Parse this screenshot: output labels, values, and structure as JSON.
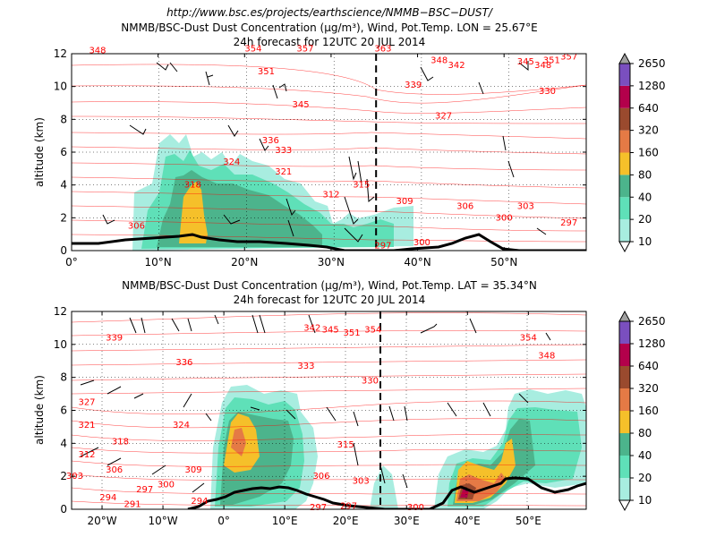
{
  "header": {
    "url": "http://www.bsc.es/projects/earthscience/NMMB−BSC−DUST/"
  },
  "colorbar": {
    "ticks": [
      "10",
      "20",
      "40",
      "80",
      "160",
      "320",
      "640",
      "1280",
      "2650"
    ],
    "colors": [
      "#a8ede0",
      "#5fe0b8",
      "#4cb48c",
      "#f5c02a",
      "#e57a45",
      "#9a4a2e",
      "#b3004b",
      "#7a4fbf"
    ]
  },
  "chart_data": [
    {
      "type": "contour",
      "title": "NMMB/BSC-Dust Dust Concentration (µg/m³), Wind, Pot.Temp. LON = 25.67°E",
      "subtitle": "24h forecast for 12UTC 20 JUL 2014",
      "xlabel": "",
      "ylabel": "altitude (km)",
      "xlim": [
        0,
        59.5
      ],
      "ylim": [
        0,
        12
      ],
      "x_ticks": [
        0,
        10,
        20,
        30,
        40,
        50
      ],
      "x_tick_labels": [
        "0°",
        "10°N",
        "20°N",
        "30°N",
        "40°N",
        "50°N"
      ],
      "y_ticks": [
        0,
        2,
        4,
        6,
        8,
        10,
        12
      ],
      "y_tick_labels": [
        "0",
        "2",
        "4",
        "6",
        "8",
        "10",
        "12"
      ],
      "grid": true,
      "cross_section_marker_x": 35.3,
      "theta_labels": [
        {
          "x": 21,
          "y": 12.3,
          "text": "354"
        },
        {
          "x": 27,
          "y": 12.3,
          "text": "357"
        },
        {
          "x": 36,
          "y": 12.3,
          "text": "363"
        },
        {
          "x": 3,
          "y": 12.2,
          "text": "348"
        },
        {
          "x": 22.5,
          "y": 10.9,
          "text": "351"
        },
        {
          "x": 42.5,
          "y": 11.6,
          "text": "348"
        },
        {
          "x": 44.5,
          "y": 11.3,
          "text": "342"
        },
        {
          "x": 39.5,
          "y": 10.1,
          "text": "339"
        },
        {
          "x": 26.5,
          "y": 8.9,
          "text": "345"
        },
        {
          "x": 43,
          "y": 8.2,
          "text": "327"
        },
        {
          "x": 52.5,
          "y": 11.5,
          "text": "345"
        },
        {
          "x": 54.5,
          "y": 11.3,
          "text": "348"
        },
        {
          "x": 55.5,
          "y": 11.6,
          "text": "351"
        },
        {
          "x": 57.5,
          "y": 11.8,
          "text": "357"
        },
        {
          "x": 55,
          "y": 9.7,
          "text": "330"
        },
        {
          "x": 23,
          "y": 6.7,
          "text": "336"
        },
        {
          "x": 24.5,
          "y": 6.1,
          "text": "333"
        },
        {
          "x": 18.5,
          "y": 5.4,
          "text": "324"
        },
        {
          "x": 24.5,
          "y": 4.8,
          "text": "321"
        },
        {
          "x": 14,
          "y": 4,
          "text": "318"
        },
        {
          "x": 30,
          "y": 3.4,
          "text": "312"
        },
        {
          "x": 33.5,
          "y": 4,
          "text": "315"
        },
        {
          "x": 38.5,
          "y": 3,
          "text": "309"
        },
        {
          "x": 45.5,
          "y": 2.7,
          "text": "306"
        },
        {
          "x": 52.5,
          "y": 2.7,
          "text": "303"
        },
        {
          "x": 50,
          "y": 2,
          "text": "300"
        },
        {
          "x": 57.5,
          "y": 1.7,
          "text": "297"
        },
        {
          "x": 7.5,
          "y": 1.5,
          "text": "306"
        },
        {
          "x": 36,
          "y": 0.3,
          "text": "297"
        },
        {
          "x": 40.5,
          "y": 0.5,
          "text": "300"
        }
      ]
    },
    {
      "type": "contour",
      "title": "NMMB/BSC-Dust Dust Concentration (µg/m³), Wind, Pot.Temp. LAT = 35.34°N",
      "subtitle": "24h forecast for 12UTC 20 JUL 2014",
      "xlabel": "",
      "ylabel": "altitude (km)",
      "xlim": [
        -25,
        59.5
      ],
      "ylim": [
        0,
        12
      ],
      "x_ticks": [
        -20,
        -10,
        0,
        10,
        20,
        30,
        40,
        50
      ],
      "x_tick_labels": [
        "20°W",
        "10°W",
        "0°",
        "10°E",
        "20°E",
        "30°E",
        "40°E",
        "50°E"
      ],
      "y_ticks": [
        0,
        2,
        4,
        6,
        8,
        10,
        12
      ],
      "y_tick_labels": [
        "0",
        "2",
        "4",
        "6",
        "8",
        "10",
        "12"
      ],
      "grid": true,
      "cross_section_marker_x": 25.67,
      "theta_labels": [
        {
          "x": 14.5,
          "y": 11,
          "text": "342"
        },
        {
          "x": 17.5,
          "y": 10.9,
          "text": "345"
        },
        {
          "x": 21,
          "y": 10.7,
          "text": "351"
        },
        {
          "x": 24.5,
          "y": 10.9,
          "text": "354"
        },
        {
          "x": 50,
          "y": 10.4,
          "text": "354"
        },
        {
          "x": -18,
          "y": 10.4,
          "text": "339"
        },
        {
          "x": 53,
          "y": 9.3,
          "text": "348"
        },
        {
          "x": -6.5,
          "y": 8.9,
          "text": "336"
        },
        {
          "x": 13.5,
          "y": 8.7,
          "text": "333"
        },
        {
          "x": 24,
          "y": 7.8,
          "text": "330"
        },
        {
          "x": -22.5,
          "y": 6.5,
          "text": "327"
        },
        {
          "x": -7,
          "y": 5.1,
          "text": "324"
        },
        {
          "x": -22.5,
          "y": 5.1,
          "text": "321"
        },
        {
          "x": -17,
          "y": 4.1,
          "text": "318"
        },
        {
          "x": 20,
          "y": 3.9,
          "text": "315"
        },
        {
          "x": -22.5,
          "y": 3.3,
          "text": "312"
        },
        {
          "x": -5,
          "y": 2.4,
          "text": "309"
        },
        {
          "x": -18,
          "y": 2.4,
          "text": "306"
        },
        {
          "x": 16,
          "y": 2,
          "text": "306"
        },
        {
          "x": -24.5,
          "y": 2,
          "text": "303"
        },
        {
          "x": 22.5,
          "y": 1.7,
          "text": "303"
        },
        {
          "x": -9.5,
          "y": 1.5,
          "text": "300"
        },
        {
          "x": -13,
          "y": 1.2,
          "text": "297"
        },
        {
          "x": -19,
          "y": 0.7,
          "text": "294"
        },
        {
          "x": -4,
          "y": 0.5,
          "text": "294"
        },
        {
          "x": -15,
          "y": 0.3,
          "text": "291"
        },
        {
          "x": 15.5,
          "y": 0.1,
          "text": "297"
        },
        {
          "x": 20.5,
          "y": 0.2,
          "text": "297"
        },
        {
          "x": 31.5,
          "y": 0.1,
          "text": "300"
        }
      ]
    }
  ]
}
